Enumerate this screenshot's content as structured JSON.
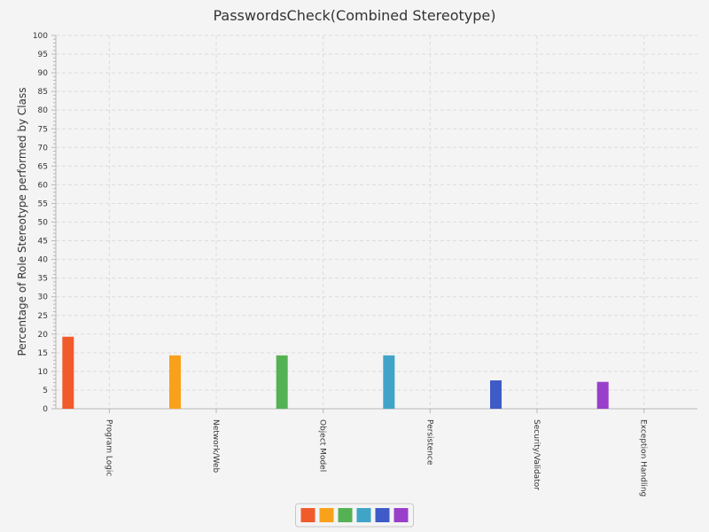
{
  "chart_data": {
    "type": "bar",
    "title": "PasswordsCheck(Combined Stereotype)",
    "xlabel": "",
    "ylabel": "Percentage of Role Stereotype performed by Class",
    "ylim": [
      0,
      100
    ],
    "yticks": [
      0,
      5,
      10,
      15,
      20,
      25,
      30,
      35,
      40,
      45,
      50,
      55,
      60,
      65,
      70,
      75,
      80,
      85,
      90,
      95,
      100
    ],
    "grid": true,
    "legend_placement": "bottom-center",
    "categories": [
      "Program Logic",
      "Network/Web",
      "Object Model",
      "Persistence",
      "Security/Validator",
      "Exception Handling"
    ],
    "values": [
      19.3,
      14.3,
      14.3,
      14.3,
      7.6,
      7.2
    ],
    "colors": [
      "#f15a2b",
      "#f9a11b",
      "#55b254",
      "#40a4c8",
      "#3f5bc7",
      "#9a3fca"
    ]
  }
}
